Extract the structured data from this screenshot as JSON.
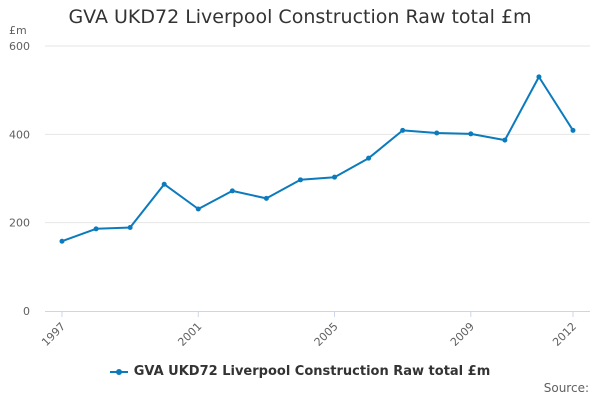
{
  "chart_data": {
    "type": "line",
    "title": "GVA UKD72 Liverpool Construction Raw total £m",
    "ylabel": "£m",
    "xlabel": "",
    "x": [
      1997,
      1998,
      1999,
      2000,
      2001,
      2002,
      2003,
      2004,
      2005,
      2006,
      2007,
      2008,
      2009,
      2010,
      2011,
      2012
    ],
    "x_ticks": [
      "1997",
      "2001",
      "2005",
      "2009",
      "2012"
    ],
    "y_ticks": [
      0,
      200,
      400,
      600
    ],
    "ylim": [
      0,
      600
    ],
    "grid": true,
    "legend_position": "bottom",
    "series": [
      {
        "name": "GVA UKD72 Liverpool Construction Raw total £m",
        "color": "#0b7bbd",
        "values": [
          158,
          186,
          189,
          287,
          231,
          272,
          255,
          297,
          303,
          346,
          409,
          403,
          401,
          387,
          530,
          409
        ]
      }
    ]
  },
  "credits": "Source:"
}
